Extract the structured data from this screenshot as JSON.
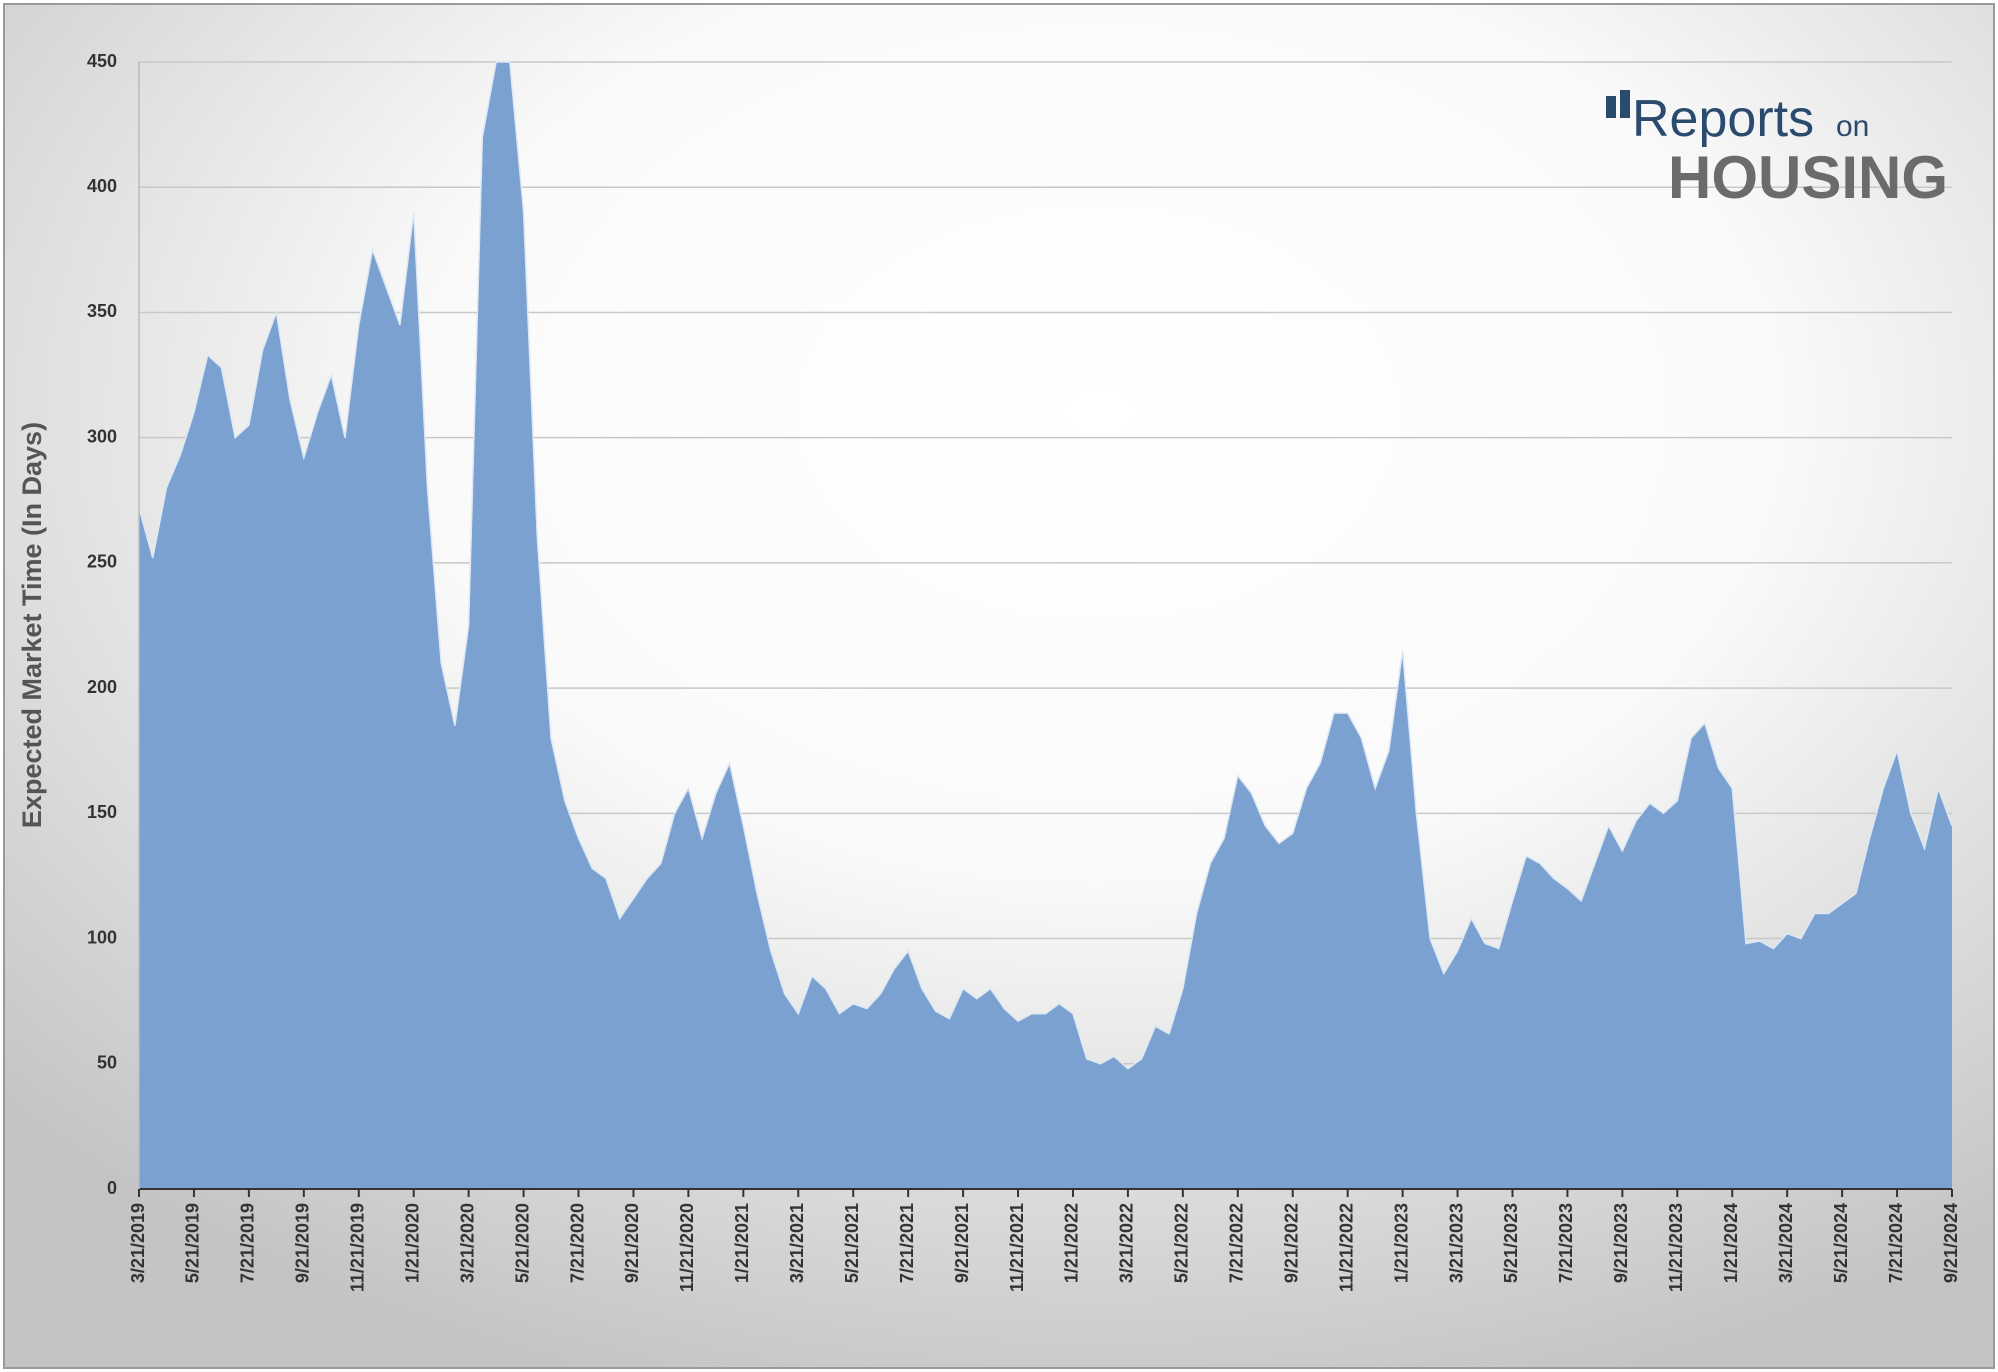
{
  "chart_data": {
    "type": "area",
    "y_label": "Expected Market Time (In Days)",
    "logo": {
      "main": "Reports",
      "small": "on",
      "sub": "HOUSING"
    },
    "color": "#7aa1cf",
    "grid": true,
    "ylim": [
      0,
      450
    ],
    "yticks": [
      0,
      50,
      100,
      150,
      200,
      250,
      300,
      350,
      400,
      450
    ],
    "categories": [
      "3/21/2019",
      null,
      null,
      null,
      "5/21/2019",
      null,
      null,
      null,
      "7/21/2019",
      null,
      null,
      null,
      "9/21/2019",
      null,
      null,
      null,
      "11/21/2019",
      null,
      null,
      null,
      "1/21/2020",
      null,
      null,
      null,
      "3/21/2020",
      null,
      null,
      null,
      "5/21/2020",
      null,
      null,
      null,
      "7/21/2020",
      null,
      null,
      null,
      "9/21/2020",
      null,
      null,
      null,
      "11/21/2020",
      null,
      null,
      null,
      "1/21/2021",
      null,
      null,
      null,
      "3/21/2021",
      null,
      null,
      null,
      "5/21/2021",
      null,
      null,
      null,
      "7/21/2021",
      null,
      null,
      null,
      "9/21/2021",
      null,
      null,
      null,
      "11/21/2021",
      null,
      null,
      null,
      "1/21/2022",
      null,
      null,
      null,
      "3/21/2022",
      null,
      null,
      null,
      "5/21/2022",
      null,
      null,
      null,
      "7/21/2022",
      null,
      null,
      null,
      "9/21/2022",
      null,
      null,
      null,
      "11/21/2022",
      null,
      null,
      null,
      "1/21/2023",
      null,
      null,
      null,
      "3/21/2023",
      null,
      null,
      null,
      "5/21/2023",
      null,
      null,
      null,
      "7/21/2023",
      null,
      null,
      null,
      "9/21/2023",
      null,
      null,
      null,
      "11/21/2023",
      null,
      null,
      null,
      "1/21/2024",
      null,
      null,
      null,
      "3/21/2024",
      null,
      null,
      null,
      "5/21/2024",
      null,
      null,
      null,
      "7/21/2024",
      null,
      null,
      null,
      "9/21/2024"
    ],
    "values": [
      272,
      252,
      280,
      293,
      310,
      333,
      328,
      300,
      305,
      335,
      350,
      315,
      292,
      310,
      325,
      300,
      345,
      375,
      360,
      345,
      390,
      280,
      210,
      185,
      225,
      420,
      450,
      450,
      390,
      260,
      180,
      155,
      140,
      128,
      124,
      108,
      116,
      124,
      130,
      150,
      160,
      140,
      158,
      170,
      145,
      118,
      95,
      78,
      70,
      85,
      80,
      70,
      74,
      72,
      78,
      88,
      95,
      80,
      71,
      68,
      80,
      76,
      80,
      72,
      67,
      70,
      70,
      74,
      70,
      52,
      50,
      53,
      48,
      52,
      65,
      62,
      80,
      110,
      130,
      140,
      165,
      158,
      145,
      138,
      142,
      160,
      170,
      190,
      190,
      180,
      160,
      175,
      215,
      150,
      100,
      86,
      95,
      108,
      98,
      96,
      115,
      133,
      130,
      124,
      120,
      115,
      130,
      145,
      135,
      147,
      154,
      150,
      155,
      180,
      186,
      168,
      160,
      98,
      99,
      96,
      102,
      100,
      110,
      110,
      114,
      118,
      140,
      160,
      175,
      150,
      136,
      160,
      145
    ]
  }
}
